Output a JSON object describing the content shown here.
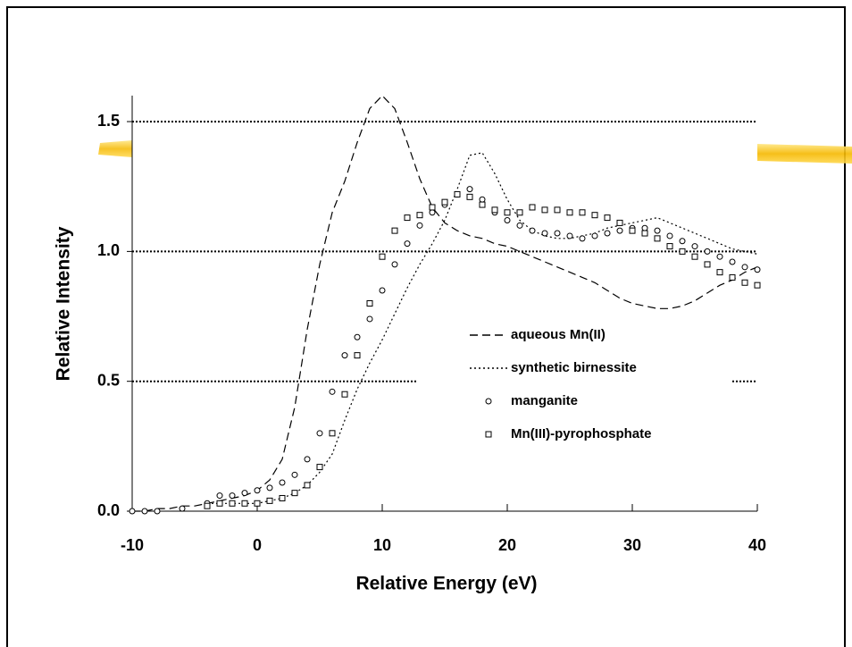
{
  "chart_data": {
    "type": "line",
    "x_label": "Relative Energy (eV)",
    "y_label": "Relative Intensity",
    "xlim": [
      -10,
      40
    ],
    "ylim": [
      0,
      1.6
    ],
    "xticks": [
      -10,
      0,
      10,
      20,
      30,
      40
    ],
    "yticks": [
      {
        "value": 0,
        "label": "0.0"
      },
      {
        "value": 0.5,
        "label": "0.5"
      },
      {
        "value": 1,
        "label": "1.0"
      },
      {
        "value": 1.5,
        "label": "1.5"
      }
    ],
    "grid": true,
    "x": [
      -10,
      -9,
      -8,
      -7,
      -6,
      -5,
      -4,
      -3,
      -2,
      -1,
      0,
      1,
      2,
      3,
      4,
      5,
      6,
      7,
      8,
      9,
      10,
      11,
      12,
      13,
      14,
      15,
      16,
      17,
      18,
      19,
      20,
      21,
      22,
      23,
      24,
      25,
      26,
      27,
      28,
      29,
      30,
      31,
      32,
      33,
      34,
      35,
      36,
      37,
      38,
      39,
      40
    ],
    "series": [
      {
        "name": "aqueous Mn(II)",
        "style": "dash",
        "color": "#000000",
        "values": [
          0.0,
          0.0,
          0.01,
          0.01,
          0.02,
          0.02,
          0.03,
          0.04,
          0.05,
          0.06,
          0.08,
          0.12,
          0.2,
          0.4,
          0.7,
          0.95,
          1.15,
          1.27,
          1.42,
          1.55,
          1.6,
          1.55,
          1.42,
          1.28,
          1.17,
          1.11,
          1.08,
          1.06,
          1.05,
          1.03,
          1.02,
          1.0,
          0.98,
          0.96,
          0.94,
          0.92,
          0.9,
          0.88,
          0.85,
          0.82,
          0.8,
          0.79,
          0.78,
          0.78,
          0.79,
          0.81,
          0.84,
          0.87,
          0.89,
          0.92,
          0.94
        ]
      },
      {
        "name": "synthetic birnessite",
        "style": "dot",
        "color": "#000000",
        "values": [
          null,
          null,
          null,
          null,
          null,
          null,
          0.03,
          0.03,
          0.03,
          0.03,
          0.03,
          0.04,
          0.05,
          0.07,
          0.1,
          0.15,
          0.22,
          0.35,
          0.47,
          0.57,
          0.66,
          0.76,
          0.86,
          0.95,
          1.03,
          1.12,
          1.24,
          1.37,
          1.38,
          1.3,
          1.2,
          1.12,
          1.08,
          1.06,
          1.05,
          1.05,
          1.06,
          1.07,
          1.09,
          1.1,
          1.11,
          1.12,
          1.13,
          1.11,
          1.09,
          1.07,
          1.05,
          1.03,
          1.01,
          1.0,
          0.99
        ]
      },
      {
        "name": "manganite",
        "style": "circle",
        "color": "#000000",
        "values": [
          0.0,
          0.0,
          0.0,
          null,
          0.01,
          null,
          0.03,
          0.06,
          0.06,
          0.07,
          0.08,
          0.09,
          0.11,
          0.14,
          0.2,
          0.3,
          0.46,
          0.6,
          0.67,
          0.74,
          0.85,
          0.95,
          1.03,
          1.1,
          1.15,
          1.18,
          1.22,
          1.24,
          1.2,
          1.15,
          1.12,
          1.1,
          1.08,
          1.07,
          1.07,
          1.06,
          1.05,
          1.06,
          1.07,
          1.08,
          1.09,
          1.09,
          1.08,
          1.06,
          1.04,
          1.02,
          1.0,
          0.98,
          0.96,
          0.94,
          0.93
        ]
      },
      {
        "name": "Mn(III)-pyrophosphate",
        "style": "square",
        "color": "#000000",
        "values": [
          null,
          null,
          null,
          null,
          null,
          null,
          0.02,
          0.03,
          0.03,
          0.03,
          0.03,
          0.04,
          0.05,
          0.07,
          0.1,
          0.17,
          0.3,
          0.45,
          0.6,
          0.8,
          0.98,
          1.08,
          1.13,
          1.14,
          1.17,
          1.19,
          1.22,
          1.21,
          1.18,
          1.16,
          1.15,
          1.15,
          1.17,
          1.16,
          1.16,
          1.15,
          1.15,
          1.14,
          1.13,
          1.11,
          1.08,
          1.07,
          1.05,
          1.02,
          1.0,
          0.98,
          0.95,
          0.92,
          0.9,
          0.88,
          0.87
        ]
      }
    ]
  }
}
